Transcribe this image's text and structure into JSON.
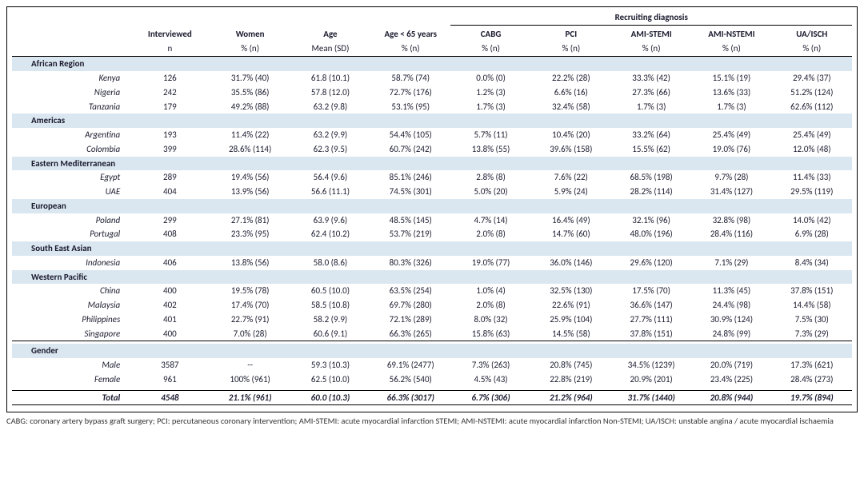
{
  "style": {
    "background_color": "#ffffff",
    "region_band_color": "#dbe7f0",
    "border_color": "#000000",
    "text_color": "#1a1a2e",
    "font_family": "Calibri / sans-serif",
    "base_font_size_pt": 8.5,
    "footnote_font_size_pt": 8
  },
  "header": {
    "group": "Recruiting diagnosis",
    "cols": [
      {
        "top": "Interviewed",
        "sub": "n"
      },
      {
        "top": "Women",
        "sub": "% (n)"
      },
      {
        "top": "Age",
        "sub": "Mean (SD)"
      },
      {
        "top": "Age < 65 years",
        "sub": "% (n)"
      },
      {
        "top": "CABG",
        "sub": "% (n)"
      },
      {
        "top": "PCI",
        "sub": "% (n)"
      },
      {
        "top": "AMI-STEMI",
        "sub": "% (n)"
      },
      {
        "top": "AMI-NSTEMI",
        "sub": "% (n)"
      },
      {
        "top": "UA/ISCH",
        "sub": "% (n)"
      }
    ]
  },
  "regions": [
    {
      "name": "African Region",
      "rows": [
        {
          "label": "Kenya",
          "cells": [
            "126",
            "31.7% (40)",
            "61.8 (10.1)",
            "58.7% (74)",
            "0.0% (0)",
            "22.2% (28)",
            "33.3% (42)",
            "15.1% (19)",
            "29.4% (37)"
          ]
        },
        {
          "label": "Nigeria",
          "cells": [
            "242",
            "35.5% (86)",
            "57.8 (12.0)",
            "72.7% (176)",
            "1.2% (3)",
            "6.6% (16)",
            "27.3% (66)",
            "13.6% (33)",
            "51.2% (124)"
          ]
        },
        {
          "label": "Tanzania",
          "cells": [
            "179",
            "49.2% (88)",
            "63.2 (9.8)",
            "53.1% (95)",
            "1.7% (3)",
            "32.4% (58)",
            "1.7% (3)",
            "1.7% (3)",
            "62.6% (112)"
          ]
        }
      ]
    },
    {
      "name": "Americas",
      "rows": [
        {
          "label": "Argentina",
          "cells": [
            "193",
            "11.4% (22)",
            "63.2 (9.9)",
            "54.4% (105)",
            "5.7% (11)",
            "10.4% (20)",
            "33.2% (64)",
            "25.4% (49)",
            "25.4% (49)"
          ]
        },
        {
          "label": "Colombia",
          "cells": [
            "399",
            "28.6% (114)",
            "62.3 (9.5)",
            "60.7% (242)",
            "13.8% (55)",
            "39.6% (158)",
            "15.5% (62)",
            "19.0% (76)",
            "12.0% (48)"
          ]
        }
      ]
    },
    {
      "name": "Eastern Mediterranean",
      "rows": [
        {
          "label": "Egypt",
          "cells": [
            "289",
            "19.4% (56)",
            "56.4 (9.6)",
            "85.1% (246)",
            "2.8% (8)",
            "7.6% (22)",
            "68.5% (198)",
            "9.7% (28)",
            "11.4% (33)"
          ]
        },
        {
          "label": "UAE",
          "cells": [
            "404",
            "13.9% (56)",
            "56.6 (11.1)",
            "74.5% (301)",
            "5.0% (20)",
            "5.9% (24)",
            "28.2% (114)",
            "31.4% (127)",
            "29.5% (119)"
          ]
        }
      ]
    },
    {
      "name": "European",
      "rows": [
        {
          "label": "Poland",
          "cells": [
            "299",
            "27.1% (81)",
            "63.9 (9.6)",
            "48.5% (145)",
            "4.7% (14)",
            "16.4% (49)",
            "32.1% (96)",
            "32.8% (98)",
            "14.0% (42)"
          ]
        },
        {
          "label": "Portugal",
          "cells": [
            "408",
            "23.3% (95)",
            "62.4 (10.2)",
            "53.7% (219)",
            "2.0% (8)",
            "14.7% (60)",
            "48.0% (196)",
            "28.4% (116)",
            "6.9% (28)"
          ]
        }
      ]
    },
    {
      "name": "South East Asian",
      "rows": [
        {
          "label": "Indonesia",
          "cells": [
            "406",
            "13.8% (56)",
            "58.0 (8.6)",
            "80.3% (326)",
            "19.0% (77)",
            "36.0% (146)",
            "29.6% (120)",
            "7.1% (29)",
            "8.4% (34)"
          ]
        }
      ]
    },
    {
      "name": "Western Pacific",
      "rows": [
        {
          "label": "China",
          "cells": [
            "400",
            "19.5% (78)",
            "60.5 (10.0)",
            "63.5% (254)",
            "1.0% (4)",
            "32.5% (130)",
            "17.5% (70)",
            "11.3% (45)",
            "37.8% (151)"
          ]
        },
        {
          "label": "Malaysia",
          "cells": [
            "402",
            "17.4% (70)",
            "58.5 (10.8)",
            "69.7% (280)",
            "2.0% (8)",
            "22.6% (91)",
            "36.6% (147)",
            "24.4% (98)",
            "14.4% (58)"
          ]
        },
        {
          "label": "Philippines",
          "cells": [
            "401",
            "22.7% (91)",
            "58.2 (9.9)",
            "72.1% (289)",
            "8.0% (32)",
            "25.9% (104)",
            "27.7% (111)",
            "30.9% (124)",
            "7.5% (30)"
          ]
        },
        {
          "label": "Singapore",
          "cells": [
            "400",
            "7.0% (28)",
            "60.6 (9.1)",
            "66.3% (265)",
            "15.8% (63)",
            "14.5% (58)",
            "37.8% (151)",
            "24.8% (99)",
            "7.3% (29)"
          ]
        }
      ]
    }
  ],
  "gender": {
    "name": "Gender",
    "rows": [
      {
        "label": "Male",
        "cells": [
          "3587",
          "--",
          "59.3 (10.3)",
          "69.1% (2477)",
          "7.3% (263)",
          "20.8% (745)",
          "34.5% (1239)",
          "20.0% (719)",
          "17.3% (621)"
        ]
      },
      {
        "label": "Female",
        "cells": [
          "961",
          "100% (961)",
          "62.5 (10.0)",
          "56.2% (540)",
          "4.5% (43)",
          "22.8% (219)",
          "20.9% (201)",
          "23.4% (225)",
          "28.4% (273)"
        ]
      }
    ]
  },
  "total": {
    "label": "Total",
    "cells": [
      "4548",
      "21.1% (961)",
      "60.0 (10.3)",
      "66.3% (3017)",
      "6.7% (306)",
      "21.2% (964)",
      "31.7% (1440)",
      "20.8% (944)",
      "19.7% (894)"
    ]
  },
  "footnote": "CABG: coronary artery bypass graft surgery; PCI: percutaneous coronary intervention; AMI-STEMI: acute myocardial infarction STEMI; AMI-NSTEMI: acute myocardial infarction Non-STEMI; UA/ISCH: unstable angina / acute myocardial ischaemia"
}
